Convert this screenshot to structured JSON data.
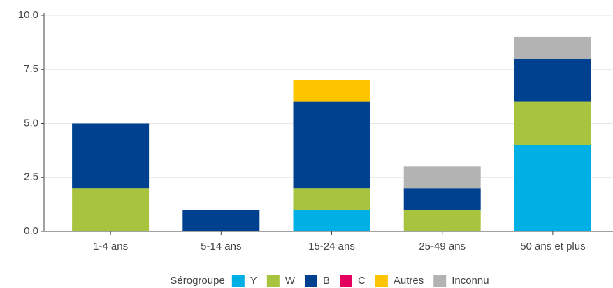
{
  "chart_data": {
    "type": "stacked_bar",
    "categories": [
      "1-4 ans",
      "5-14 ans",
      "15-24 ans",
      "25-49 ans",
      "50 ans et plus"
    ],
    "series": [
      {
        "name": "Y",
        "color": "#00b0e4",
        "values": [
          0,
          0,
          1,
          0,
          4
        ]
      },
      {
        "name": "W",
        "color": "#a8c43e",
        "values": [
          2,
          0,
          1,
          1,
          2
        ]
      },
      {
        "name": "B",
        "color": "#00418f",
        "values": [
          3,
          1,
          4,
          1,
          2
        ]
      },
      {
        "name": "C",
        "color": "#e4005e",
        "values": [
          0,
          0,
          0,
          0,
          0
        ]
      },
      {
        "name": "Autres",
        "color": "#ffc400",
        "values": [
          0,
          0,
          1,
          0,
          0
        ]
      },
      {
        "name": "Inconnu",
        "color": "#b3b3b3",
        "values": [
          0,
          0,
          0,
          1,
          1
        ]
      }
    ],
    "legend_title": "Sérogroupe",
    "ylim": [
      0,
      10
    ],
    "yticks": [
      {
        "value": 0,
        "label": "0.0"
      },
      2.5,
      {
        "value": 5,
        "label": "5.0"
      },
      7.5,
      {
        "value": 10,
        "label": "10.0"
      }
    ],
    "grid": true,
    "legend": "bottom"
  }
}
